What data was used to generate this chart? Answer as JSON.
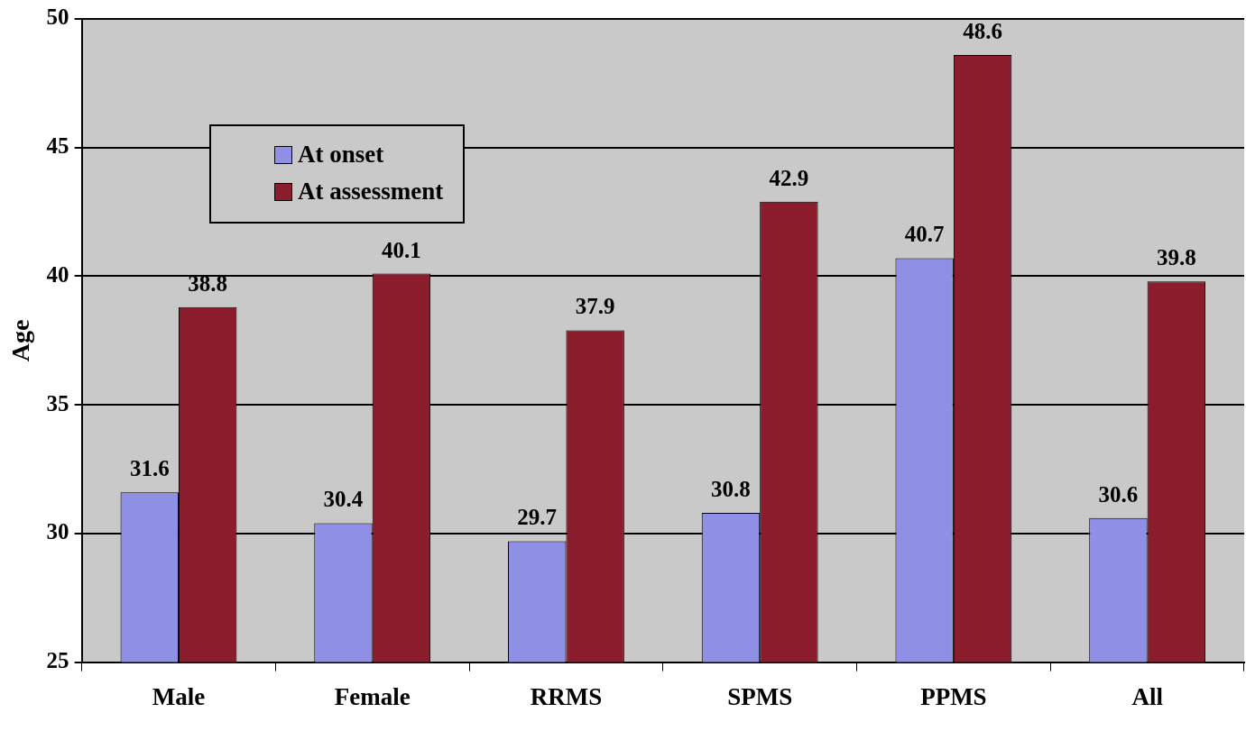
{
  "chart_data": {
    "type": "bar",
    "ylabel": "Age",
    "categories": [
      "Male",
      "Female",
      "RRMS",
      "SPMS",
      "PPMS",
      "All"
    ],
    "series": [
      {
        "name": "At onset",
        "color": "#8f8fe6",
        "values": [
          31.6,
          30.4,
          29.7,
          30.8,
          40.7,
          30.6
        ]
      },
      {
        "name": "At assessment",
        "color": "#8b1c2c",
        "values": [
          38.8,
          40.1,
          37.9,
          42.9,
          48.6,
          39.8
        ]
      }
    ],
    "ylim": [
      25,
      50
    ],
    "yticks": [
      25,
      30,
      35,
      40,
      45,
      50
    ],
    "grid": "y",
    "legend": "top left",
    "data_labels": true
  }
}
